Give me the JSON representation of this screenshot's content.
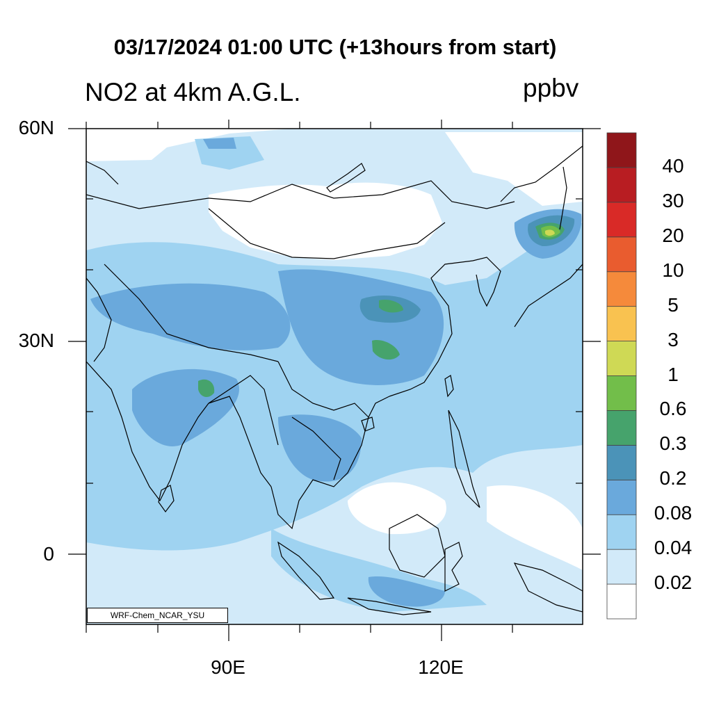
{
  "title": "03/17/2024 01:00 UTC (+13hours from start)",
  "subtitle": "NO2 at 4km A.G.L.",
  "units": "ppbv",
  "credit": "WRF-Chem_NCAR_YSU",
  "axes": {
    "x_ticks": [
      {
        "label": "90E",
        "lon": 90
      },
      {
        "label": "120E",
        "lon": 120
      }
    ],
    "y_ticks": [
      {
        "label": "60N",
        "lat": 60
      },
      {
        "label": "30N",
        "lat": 30
      },
      {
        "label": "0",
        "lat": 0
      }
    ]
  },
  "colorbar": {
    "colors": [
      "#ffffff",
      "#d2eaf9",
      "#9fd3f1",
      "#6aa9dc",
      "#4b93b8",
      "#46a36c",
      "#72be4a",
      "#cfd955",
      "#f9c250",
      "#f58a3b",
      "#e95c2f",
      "#d92a27",
      "#b81d22",
      "#8f161a"
    ],
    "labels": [
      "0.02",
      "0.04",
      "0.08",
      "0.2",
      "0.3",
      "0.6",
      "1",
      "3",
      "5",
      "10",
      "20",
      "30",
      "40"
    ]
  }
}
